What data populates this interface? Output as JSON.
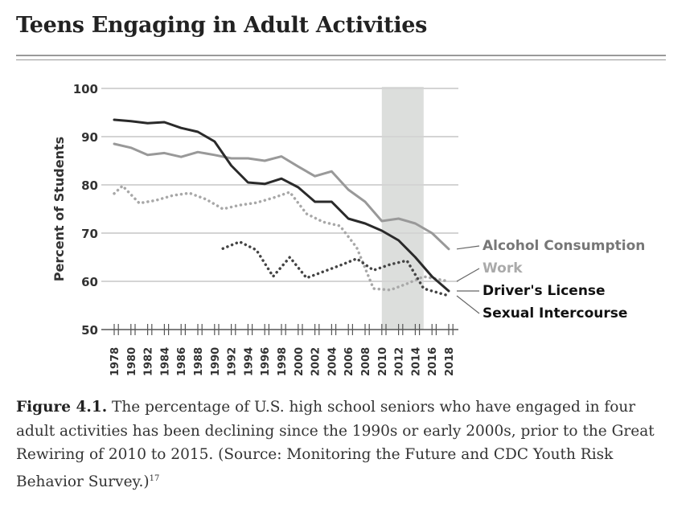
{
  "title": "Teens Engaging in Adult Activities",
  "caption": {
    "label": "Figure 4.1.",
    "text": " The percentage of U.S. high school seniors who have engaged in four adult activities has been declining since the 1990s or early 2000s, prior to the Great Rewiring of 2010 to 2015. (Source: Monitoring the Future and CDC Youth Risk Behavior Survey.)",
    "footnote": "17"
  },
  "chart_data": {
    "type": "line",
    "ylabel": "Percent of Students",
    "ylim": [
      50,
      100
    ],
    "yticks": [
      "50",
      "60",
      "70",
      "80",
      "90",
      "100"
    ],
    "xticks": [
      "1978",
      "1980",
      "1982",
      "1984",
      "1986",
      "1988",
      "1990",
      "1992",
      "1994",
      "1996",
      "1998",
      "2000",
      "2002",
      "2004",
      "2006",
      "2008",
      "2010",
      "2012",
      "2014",
      "2016",
      "2018"
    ],
    "shaded_range": [
      2010,
      2015
    ],
    "series": [
      {
        "name": "Alcohol Consumption",
        "color": "#999999",
        "style": "solid",
        "points": [
          [
            1978,
            88.5
          ],
          [
            1980,
            87.7
          ],
          [
            1982,
            86.2
          ],
          [
            1984,
            86.6
          ],
          [
            1986,
            85.8
          ],
          [
            1988,
            86.8
          ],
          [
            1990,
            86.2
          ],
          [
            1992,
            85.5
          ],
          [
            1994,
            85.5
          ],
          [
            1996,
            85
          ],
          [
            1998,
            85.9
          ],
          [
            2000,
            83.8
          ],
          [
            2002,
            81.8
          ],
          [
            2004,
            82.8
          ],
          [
            2006,
            79
          ],
          [
            2008,
            76.5
          ],
          [
            2010,
            72.5
          ],
          [
            2012,
            73
          ],
          [
            2014,
            72
          ],
          [
            2016,
            70
          ],
          [
            2018,
            66.7
          ]
        ]
      },
      {
        "name": "Work",
        "color": "#a8a8a8",
        "style": "dotted",
        "points": [
          [
            1978,
            78.2
          ],
          [
            1979,
            79.8
          ],
          [
            1981,
            76.2
          ],
          [
            1983,
            76.8
          ],
          [
            1985,
            77.8
          ],
          [
            1987,
            78.3
          ],
          [
            1989,
            77
          ],
          [
            1991,
            75
          ],
          [
            1993,
            75.8
          ],
          [
            1995,
            76.3
          ],
          [
            1997,
            77.3
          ],
          [
            1999,
            78.5
          ],
          [
            2001,
            74
          ],
          [
            2003,
            72.3
          ],
          [
            2005,
            71.5
          ],
          [
            2007,
            67
          ],
          [
            2009,
            58.5
          ],
          [
            2011,
            58.2
          ],
          [
            2013,
            59.5
          ],
          [
            2015,
            61
          ],
          [
            2018,
            60
          ]
        ]
      },
      {
        "name": "Driver's License",
        "color": "#2a2a2a",
        "style": "solid",
        "points": [
          [
            1978,
            93.5
          ],
          [
            1980,
            93.2
          ],
          [
            1982,
            92.8
          ],
          [
            1984,
            93
          ],
          [
            1986,
            91.8
          ],
          [
            1988,
            91
          ],
          [
            1990,
            89
          ],
          [
            1992,
            84
          ],
          [
            1994,
            80.5
          ],
          [
            1996,
            80.2
          ],
          [
            1998,
            81.3
          ],
          [
            2000,
            79.5
          ],
          [
            2002,
            76.5
          ],
          [
            2004,
            76.5
          ],
          [
            2006,
            73
          ],
          [
            2008,
            72
          ],
          [
            2010,
            70.5
          ],
          [
            2012,
            68.5
          ],
          [
            2014,
            65
          ],
          [
            2016,
            61
          ],
          [
            2018,
            58
          ]
        ]
      },
      {
        "name": "Sexual Intercourse",
        "color": "#444444",
        "style": "dotted",
        "points": [
          [
            1991,
            66.8
          ],
          [
            1993,
            68.2
          ],
          [
            1995,
            66.5
          ],
          [
            1997,
            61
          ],
          [
            1999,
            65
          ],
          [
            2001,
            60.7
          ],
          [
            2003,
            62
          ],
          [
            2005,
            63.3
          ],
          [
            2007,
            64.7
          ],
          [
            2009,
            62.3
          ],
          [
            2011,
            63.5
          ],
          [
            2013,
            64.3
          ],
          [
            2015,
            58.5
          ],
          [
            2017,
            57.5
          ],
          [
            2018,
            57
          ]
        ]
      }
    ]
  }
}
